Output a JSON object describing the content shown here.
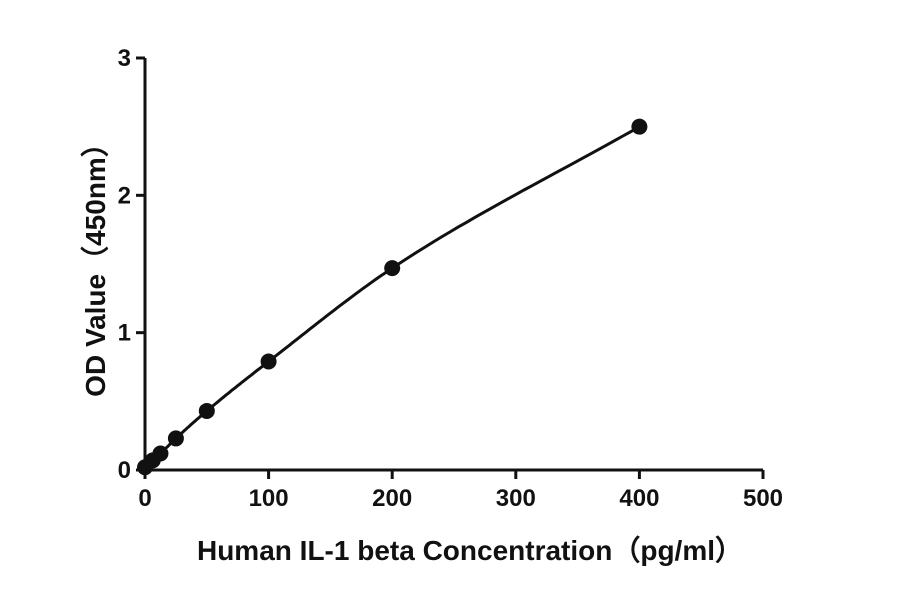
{
  "chart_data": {
    "type": "scatter",
    "title": "",
    "xlabel": "Human IL-1 beta  Concentration（pg/ml）",
    "ylabel": "OD Value（450nm）",
    "xlim": [
      0,
      500
    ],
    "ylim": [
      0,
      3
    ],
    "xticks": [
      "0",
      "100",
      "200",
      "300",
      "400",
      "500"
    ],
    "yticks": [
      "0",
      "1",
      "2",
      "3"
    ],
    "grid": false,
    "legend": "none",
    "fit_line": true,
    "series": [
      {
        "x": [
          0,
          6.25,
          12.5,
          25,
          50,
          100,
          200,
          400
        ],
        "y": [
          0.02,
          0.07,
          0.12,
          0.23,
          0.43,
          0.79,
          1.47,
          2.5
        ]
      }
    ]
  }
}
